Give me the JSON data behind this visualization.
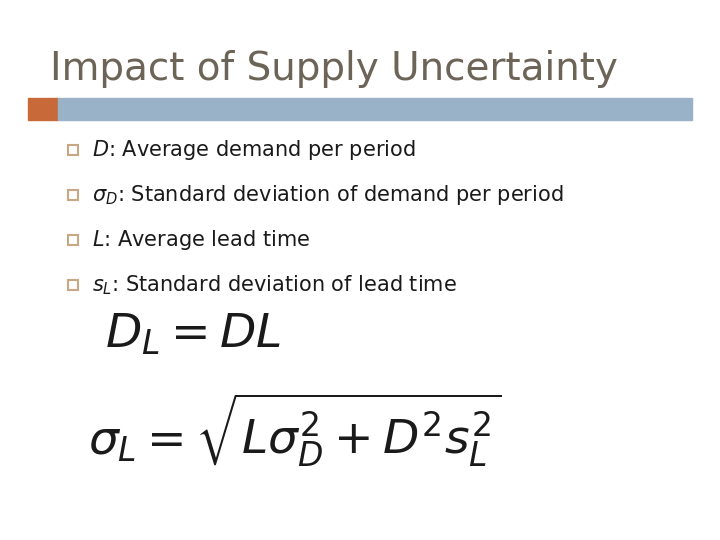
{
  "title": "Impact of Supply Uncertainty",
  "title_color": "#6d6458",
  "title_fontsize": 28,
  "bg_color": "#ffffff",
  "bar_color_orange": "#c8693a",
  "bar_color_blue": "#9ab2c8",
  "bullet_color": "#1a1a1a",
  "bullet_fontsize": 15,
  "square_color": "#c8a882",
  "formula_color": "#1a1a1a"
}
